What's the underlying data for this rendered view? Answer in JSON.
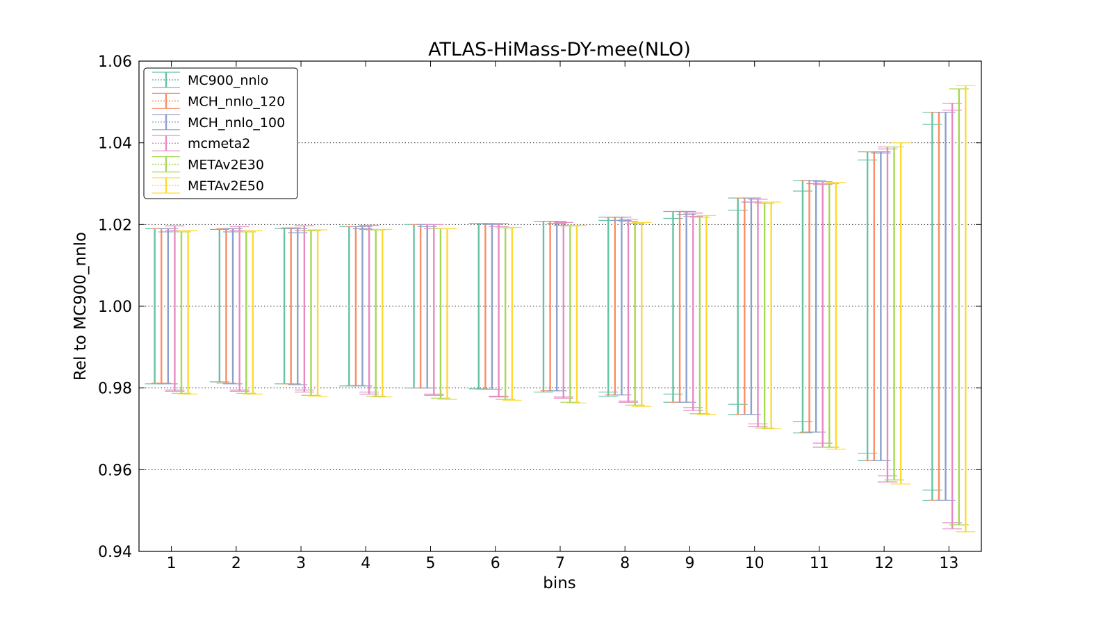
{
  "chart_data": {
    "type": "errorbar",
    "title": "ATLAS-HiMass-DY-mee(NLO)",
    "xlabel": "bins",
    "ylabel": "Rel to MC900_nnlo",
    "ylim": [
      0.94,
      1.06
    ],
    "yticks": [
      "0.94",
      "0.96",
      "0.98",
      "1.00",
      "1.02",
      "1.04",
      "1.06"
    ],
    "categories": [
      "1",
      "2",
      "3",
      "4",
      "5",
      "6",
      "7",
      "8",
      "9",
      "10",
      "11",
      "12",
      "13"
    ],
    "grid": "horizontal dotted",
    "legend_position": "top-left",
    "series": [
      {
        "name": "MC900_nnlo",
        "color": "#66c2a5",
        "low": [
          0.981,
          0.9815,
          0.981,
          0.9805,
          0.98,
          0.9798,
          0.979,
          0.978,
          0.9765,
          0.9735,
          0.969,
          0.9622,
          0.9525
        ],
        "high": [
          1.019,
          1.0188,
          1.019,
          1.0195,
          1.02,
          1.0203,
          1.0208,
          1.0218,
          1.0232,
          1.0265,
          1.0308,
          1.0378,
          1.0475
        ],
        "inner_low": [
          0.981,
          0.9815,
          0.981,
          0.9805,
          0.98,
          0.9798,
          0.979,
          0.979,
          0.9785,
          0.976,
          0.9718,
          0.964,
          0.955
        ],
        "inner_high": [
          1.019,
          1.0188,
          1.019,
          1.0195,
          1.02,
          1.0203,
          1.0208,
          1.021,
          1.0215,
          1.0235,
          1.0282,
          1.0358,
          1.0445
        ]
      },
      {
        "name": "MCH_nnlo_120",
        "color": "#fc8d62",
        "low": [
          0.9812,
          0.9812,
          0.981,
          0.9806,
          0.98,
          0.9797,
          0.9793,
          0.9783,
          0.9765,
          0.9735,
          0.9692,
          0.9622,
          0.9525
        ],
        "high": [
          1.019,
          1.019,
          1.0192,
          1.0195,
          1.02,
          1.0203,
          1.0208,
          1.0218,
          1.0232,
          1.0265,
          1.0308,
          1.0378,
          1.0475
        ],
        "inner_low": [
          0.9812,
          0.9812,
          0.981,
          0.9806,
          0.98,
          0.9797,
          0.9793,
          0.9783,
          0.9765,
          0.9735,
          0.9692,
          0.9622,
          0.9525
        ],
        "inner_high": [
          1.019,
          1.019,
          1.0192,
          1.0195,
          1.02,
          1.0203,
          1.0208,
          1.0218,
          1.0232,
          1.0265,
          1.0308,
          1.0378,
          1.0475
        ]
      },
      {
        "name": "MCH_nnlo_100",
        "color": "#8da0cb",
        "low": [
          0.981,
          0.981,
          0.9808,
          0.9805,
          0.98,
          0.9797,
          0.9793,
          0.9783,
          0.9765,
          0.9735,
          0.9692,
          0.9622,
          0.9525
        ],
        "high": [
          1.019,
          1.019,
          1.019,
          1.0195,
          1.02,
          1.0203,
          1.0208,
          1.0218,
          1.0232,
          1.0265,
          1.0308,
          1.0378,
          1.0475
        ],
        "inner_low": [
          0.981,
          0.981,
          0.9808,
          0.9805,
          0.98,
          0.9797,
          0.9793,
          0.9783,
          0.9765,
          0.9735,
          0.9692,
          0.9622,
          0.9525
        ],
        "inner_high": [
          1.0182,
          1.0182,
          1.018,
          1.019,
          1.0195,
          1.02,
          1.0203,
          1.021,
          1.0225,
          1.0255,
          1.03,
          1.0375,
          1.0475
        ]
      },
      {
        "name": "mcmeta2",
        "color": "#e78ac3",
        "low": [
          0.9792,
          0.9792,
          0.979,
          0.9785,
          0.9782,
          0.9778,
          0.9775,
          0.9765,
          0.9745,
          0.9705,
          0.9655,
          0.957,
          0.9455
        ],
        "high": [
          1.0197,
          1.0195,
          1.0197,
          1.0198,
          1.02,
          1.0203,
          1.0205,
          1.0213,
          1.0228,
          1.0262,
          1.0305,
          1.039,
          1.0497
        ],
        "inner_low": [
          0.9795,
          0.9795,
          0.9795,
          0.979,
          0.9785,
          0.978,
          0.9778,
          0.9768,
          0.9752,
          0.9712,
          0.9665,
          0.9585,
          0.947
        ],
        "inner_high": [
          1.0185,
          1.0185,
          1.0185,
          1.0188,
          1.019,
          1.0195,
          1.0198,
          1.0208,
          1.022,
          1.0255,
          1.0298,
          1.0385,
          1.048
        ]
      },
      {
        "name": "METAv2E30",
        "color": "#a6d854",
        "low": [
          0.9787,
          0.9787,
          0.9782,
          0.978,
          0.9775,
          0.9772,
          0.9765,
          0.9758,
          0.9737,
          0.9702,
          0.9655,
          0.9575,
          0.9465
        ],
        "high": [
          1.0182,
          1.0182,
          1.0185,
          1.0187,
          1.019,
          1.0192,
          1.0197,
          1.0203,
          1.0218,
          1.0252,
          1.03,
          1.039,
          1.0532
        ],
        "inner_low": [
          0.9787,
          0.9787,
          0.9782,
          0.978,
          0.9775,
          0.9772,
          0.9765,
          0.9758,
          0.9737,
          0.9702,
          0.9655,
          0.9575,
          0.9465
        ],
        "inner_high": [
          1.0182,
          1.0182,
          1.0185,
          1.0187,
          1.019,
          1.0192,
          1.0197,
          1.0203,
          1.0218,
          1.0252,
          1.03,
          1.039,
          1.0532
        ]
      },
      {
        "name": "METAv2E50",
        "color": "#ffd92f",
        "low": [
          0.9785,
          0.9785,
          0.978,
          0.9778,
          0.9772,
          0.977,
          0.9763,
          0.9755,
          0.9735,
          0.97,
          0.965,
          0.9565,
          0.9448
        ],
        "high": [
          1.0185,
          1.0185,
          1.0187,
          1.0188,
          1.019,
          1.0193,
          1.0198,
          1.0205,
          1.0222,
          1.0255,
          1.0303,
          1.04,
          1.054
        ],
        "inner_low": [
          0.9785,
          0.9785,
          0.978,
          0.9778,
          0.9772,
          0.977,
          0.9763,
          0.9755,
          0.9735,
          0.97,
          0.965,
          0.9565,
          0.9448
        ],
        "inner_high": [
          1.0185,
          1.0185,
          1.0187,
          1.0188,
          1.019,
          1.0193,
          1.0198,
          1.0205,
          1.0222,
          1.0255,
          1.0303,
          1.04,
          1.054
        ]
      }
    ]
  }
}
